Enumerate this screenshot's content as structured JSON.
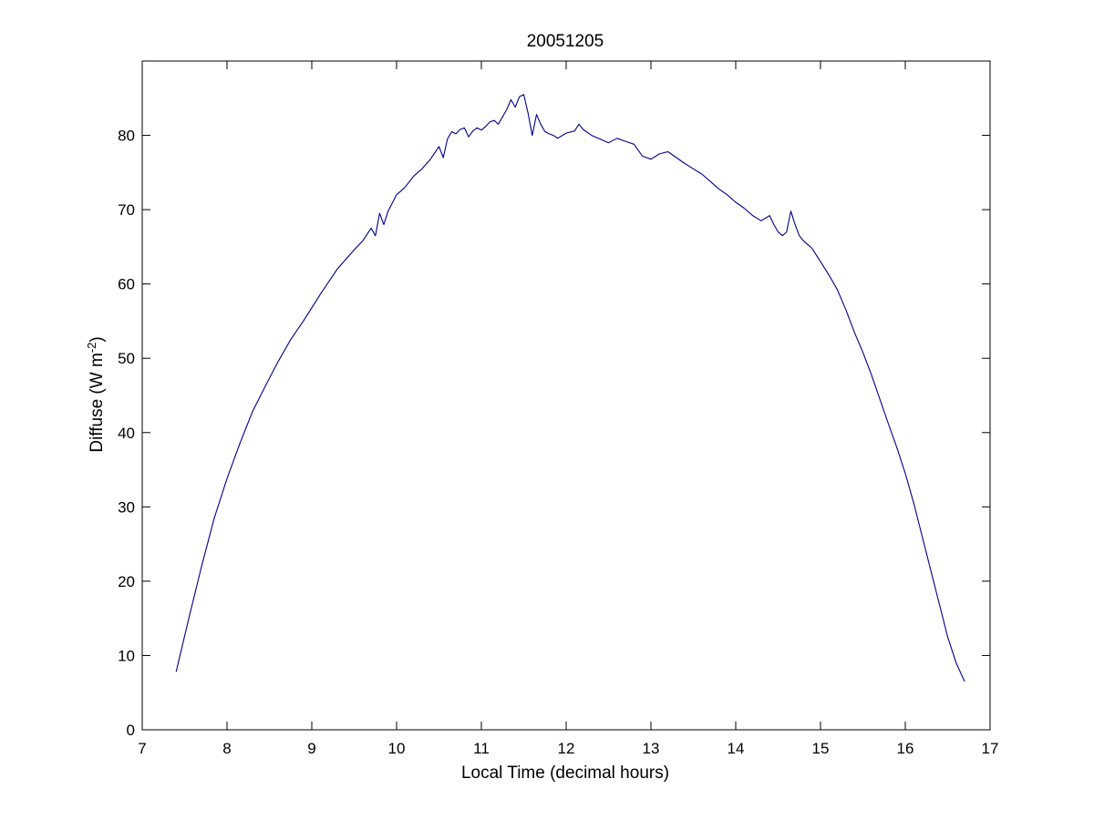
{
  "chart_data": {
    "type": "line",
    "title": "20051205",
    "xlabel": "Local Time (decimal hours)",
    "ylabel_main": "Diffuse (W m",
    "ylabel_exp": "-2",
    "ylabel_close": ")",
    "xlim": [
      7,
      17
    ],
    "ylim": [
      0,
      90
    ],
    "xticks": [
      7,
      8,
      9,
      10,
      11,
      12,
      13,
      14,
      15,
      16,
      17
    ],
    "yticks": [
      0,
      10,
      20,
      30,
      40,
      50,
      60,
      70,
      80
    ],
    "grid": false,
    "line_color": "#00008B",
    "series": [
      {
        "x": [
          7.4,
          7.55,
          7.7,
          7.85,
          8.0,
          8.15,
          8.3,
          8.45,
          8.6,
          8.75,
          8.9,
          9.0,
          9.1,
          9.2,
          9.3,
          9.4,
          9.5,
          9.6,
          9.7,
          9.75,
          9.8,
          9.85,
          9.9,
          10.0,
          10.1,
          10.2,
          10.3,
          10.4,
          10.5,
          10.55,
          10.6,
          10.65,
          10.7,
          10.75,
          10.8,
          10.85,
          10.9,
          10.95,
          11.0,
          11.05,
          11.1,
          11.15,
          11.2,
          11.25,
          11.3,
          11.35,
          11.4,
          11.45,
          11.5,
          11.55,
          11.6,
          11.65,
          11.7,
          11.75,
          11.8,
          11.85,
          11.9,
          12.0,
          12.1,
          12.15,
          12.2,
          12.3,
          12.4,
          12.5,
          12.6,
          12.7,
          12.8,
          12.9,
          13.0,
          13.1,
          13.2,
          13.3,
          13.4,
          13.5,
          13.6,
          13.7,
          13.8,
          13.9,
          14.0,
          14.1,
          14.2,
          14.3,
          14.4,
          14.45,
          14.5,
          14.55,
          14.6,
          14.65,
          14.7,
          14.75,
          14.8,
          14.9,
          15.0,
          15.1,
          15.2,
          15.3,
          15.4,
          15.5,
          15.6,
          15.7,
          15.8,
          15.9,
          16.0,
          16.1,
          16.2,
          16.3,
          16.4,
          16.5,
          16.6,
          16.7
        ],
        "y": [
          7.8,
          15.0,
          22.0,
          28.5,
          33.8,
          38.5,
          42.8,
          46.2,
          49.5,
          52.5,
          55.0,
          56.8,
          58.6,
          60.3,
          62.0,
          63.3,
          64.6,
          65.8,
          67.5,
          66.5,
          69.5,
          68.0,
          69.8,
          72.0,
          73.0,
          74.5,
          75.5,
          76.8,
          78.5,
          77.0,
          79.5,
          80.5,
          80.2,
          80.8,
          81.0,
          79.8,
          80.6,
          81.0,
          80.7,
          81.2,
          81.8,
          82.0,
          81.5,
          82.5,
          83.5,
          84.8,
          83.8,
          85.2,
          85.5,
          83.0,
          80.0,
          82.8,
          81.5,
          80.5,
          80.2,
          80.0,
          79.6,
          80.3,
          80.6,
          81.5,
          80.8,
          80.0,
          79.5,
          79.0,
          79.6,
          79.2,
          78.8,
          77.2,
          76.8,
          77.5,
          77.8,
          77.0,
          76.2,
          75.5,
          74.8,
          73.8,
          72.8,
          72.0,
          71.0,
          70.2,
          69.2,
          68.5,
          69.2,
          68.0,
          67.0,
          66.5,
          67.0,
          69.8,
          68.0,
          66.5,
          65.8,
          64.8,
          63.0,
          61.2,
          59.2,
          56.5,
          53.5,
          50.8,
          47.8,
          44.5,
          41.2,
          38.0,
          34.5,
          30.5,
          26.0,
          21.5,
          17.0,
          12.5,
          9.0,
          6.5
        ]
      }
    ]
  }
}
